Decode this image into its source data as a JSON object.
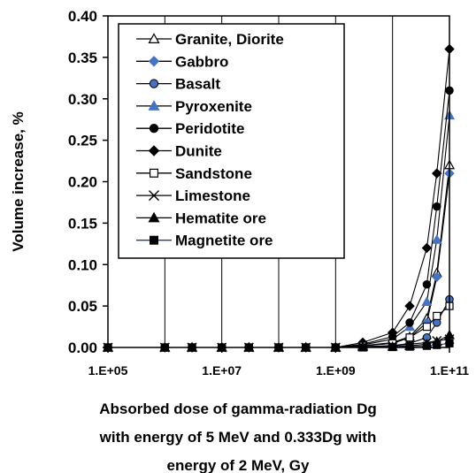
{
  "chart_data": {
    "type": "line",
    "xscale": "log",
    "xlim": [
      100000,
      100000000000
    ],
    "ylim": [
      0,
      0.4
    ],
    "x_ticks": [
      "1.E+05",
      "1.E+07",
      "1.E+09",
      "1.E+11"
    ],
    "y_ticks": [
      "0.00",
      "0.05",
      "0.10",
      "0.15",
      "0.20",
      "0.25",
      "0.30",
      "0.35",
      "0.40"
    ],
    "ylabel": "Volume increase, %",
    "xlabel_lines": [
      "Absorbed dose of gamma-radiation Dg",
      "with energy of 5 MeV and 0.333Dg with",
      "energy of 2 MeV, Gy"
    ],
    "grid": "vertical-at-decades",
    "legend_position": "top-left-inside",
    "x": [
      100000,
      1000000,
      3000000,
      10000000,
      30000000,
      100000000,
      300000000,
      1000000000,
      3000000000,
      10000000000,
      20000000000,
      40000000000,
      60000000000,
      100000000000
    ],
    "series": [
      {
        "name": "Granite, Diorite",
        "marker": "triangle-open",
        "color": "#000000",
        "values": [
          0,
          0,
          0,
          0,
          0,
          0,
          0,
          0,
          0.002,
          0.006,
          0.013,
          0.035,
          0.09,
          0.22
        ]
      },
      {
        "name": "Gabbro",
        "marker": "diamond",
        "color": "#4472C4",
        "values": [
          0,
          0,
          0,
          0,
          0,
          0,
          0,
          0,
          0.002,
          0.005,
          0.012,
          0.03,
          0.085,
          0.21
        ]
      },
      {
        "name": "Basalt",
        "marker": "circle",
        "color": "#4472C4",
        "values": [
          0,
          0,
          0,
          0,
          0,
          0,
          0,
          0,
          0.001,
          0.002,
          0.005,
          0.012,
          0.03,
          0.058
        ]
      },
      {
        "name": "Pyroxenite",
        "marker": "triangle",
        "color": "#4472C4",
        "values": [
          0,
          0,
          0,
          0,
          0,
          0,
          0,
          0,
          0.003,
          0.01,
          0.025,
          0.055,
          0.13,
          0.28
        ]
      },
      {
        "name": "Peridotite",
        "marker": "circle",
        "color": "#000000",
        "values": [
          0,
          0,
          0,
          0,
          0,
          0,
          0,
          0,
          0.004,
          0.013,
          0.03,
          0.076,
          0.17,
          0.31
        ]
      },
      {
        "name": "Dunite",
        "marker": "diamond",
        "color": "#000000",
        "values": [
          0,
          0,
          0,
          0,
          0,
          0,
          0,
          0,
          0.006,
          0.018,
          0.05,
          0.12,
          0.21,
          0.36
        ]
      },
      {
        "name": "Sandstone",
        "marker": "square-open",
        "color": "#000000",
        "values": [
          0,
          0,
          0,
          0,
          0,
          0,
          0,
          0,
          0.002,
          0.005,
          0.012,
          0.025,
          0.038,
          0.05
        ]
      },
      {
        "name": "Limestone",
        "marker": "x",
        "color": "#000000",
        "values": [
          0,
          0,
          0,
          0,
          0,
          0,
          0,
          0,
          0.001,
          0.002,
          0.004,
          0.006,
          0.008,
          0.01
        ]
      },
      {
        "name": "Hematite ore",
        "marker": "triangle",
        "color": "#000000",
        "values": [
          0,
          0,
          0,
          0,
          0,
          0,
          0,
          0,
          0.0005,
          0.001,
          0.002,
          0.004,
          0.007,
          0.015
        ]
      },
      {
        "name": "Magnetite ore",
        "marker": "square",
        "color": "#000000",
        "values": [
          0,
          0,
          0,
          0,
          0,
          0,
          0,
          0,
          0,
          0.0005,
          0.001,
          0.002,
          0.003,
          0.005
        ]
      }
    ]
  }
}
